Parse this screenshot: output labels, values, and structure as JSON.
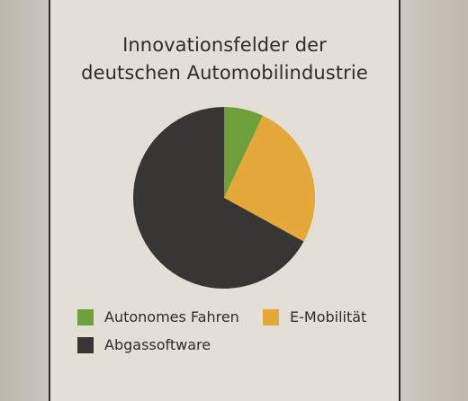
{
  "chart_data": {
    "type": "pie",
    "title_lines": [
      "Innovationsfelder der",
      "deutschen Automobilindustrie"
    ],
    "slices": [
      {
        "label": "Autonomes Fahren",
        "value": 7,
        "color": "#6f9f3a"
      },
      {
        "label": "E-Mobilität",
        "value": 26,
        "color": "#e5a83b"
      },
      {
        "label": "Abgassoftware",
        "value": 67,
        "color": "#383535"
      }
    ],
    "legend": [
      "Autonomes Fahren",
      "E-Mobilität",
      "Abgassoftware"
    ],
    "legend_placement": "bottom",
    "start_angle": "12 o'clock",
    "direction": "clockwise"
  },
  "colors": {
    "paper": "#e3dfd7",
    "border": "#2f2d2b",
    "text": "#2f2d2a"
  }
}
